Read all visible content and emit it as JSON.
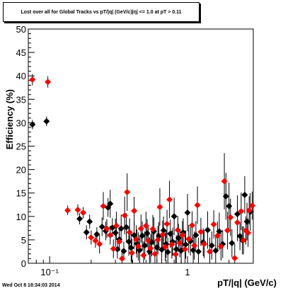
{
  "title": "Lost over all for Global Tracks vs pT/|q| (GeV/c)|η| <= 1.0 at pT > 0.11",
  "timestamp": "Wed Oct  8 18:34:03 2014",
  "colors": {
    "series_black": "#000000",
    "series_red": "#ff0000",
    "axis": "#000000",
    "background": "#ffffff"
  },
  "chart_data": {
    "type": "scatter",
    "title": "Lost over all for Global Tracks vs pT/|q| (GeV/c)|η| <= 1.0 at pT > 0.11",
    "xlabel": "pT/|q| (GeV/c)",
    "ylabel": "Efficiency (%)",
    "xscale": "log",
    "xlim": [
      0.07,
      3.0
    ],
    "ylim": [
      0,
      50
    ],
    "x_tick_labels": [
      {
        "value": 0.1,
        "label": "10⁻¹"
      },
      {
        "value": 1,
        "label": "1"
      }
    ],
    "y_ticks": [
      0,
      5,
      10,
      15,
      20,
      25,
      30,
      35,
      40,
      45,
      50
    ],
    "marker": "diamond",
    "legend": "none",
    "grid": false,
    "series": [
      {
        "color": "#000000",
        "points": [
          {
            "x": 0.075,
            "y": 29.6,
            "err": 1.0
          },
          {
            "x": 0.095,
            "y": 30.3,
            "err": 1.0
          },
          {
            "x": 0.165,
            "y": 9.5,
            "err": 1.2
          },
          {
            "x": 0.185,
            "y": 6.6,
            "err": 1.5
          },
          {
            "x": 0.195,
            "y": 8.9,
            "err": 1.5
          },
          {
            "x": 0.22,
            "y": 6.2,
            "err": 1.5
          },
          {
            "x": 0.24,
            "y": 7.8,
            "err": 2
          },
          {
            "x": 0.255,
            "y": 6.9,
            "err": 2
          },
          {
            "x": 0.265,
            "y": 11.9,
            "err": 2
          },
          {
            "x": 0.275,
            "y": 12.7,
            "err": 3
          },
          {
            "x": 0.285,
            "y": 7.6,
            "err": 2
          },
          {
            "x": 0.3,
            "y": 6.5,
            "err": 3
          },
          {
            "x": 0.31,
            "y": 3.0,
            "err": 2
          },
          {
            "x": 0.32,
            "y": 5.1,
            "err": 2
          },
          {
            "x": 0.33,
            "y": 7.4,
            "err": 3
          },
          {
            "x": 0.345,
            "y": 2.6,
            "err": 2
          },
          {
            "x": 0.36,
            "y": 7.7,
            "err": 3
          },
          {
            "x": 0.375,
            "y": 4.6,
            "err": 3
          },
          {
            "x": 0.39,
            "y": 3.3,
            "err": 3
          },
          {
            "x": 0.41,
            "y": 6.0,
            "err": 3
          },
          {
            "x": 0.43,
            "y": 4.2,
            "err": 3
          },
          {
            "x": 0.45,
            "y": 2.8,
            "err": 3
          },
          {
            "x": 0.47,
            "y": 5.9,
            "err": 3
          },
          {
            "x": 0.49,
            "y": 3.8,
            "err": 3
          },
          {
            "x": 0.51,
            "y": 6.4,
            "err": 3
          },
          {
            "x": 0.53,
            "y": 2.5,
            "err": 3
          },
          {
            "x": 0.55,
            "y": 4.5,
            "err": 3
          },
          {
            "x": 0.57,
            "y": 6.8,
            "err": 3
          },
          {
            "x": 0.6,
            "y": 3.4,
            "err": 3
          },
          {
            "x": 0.62,
            "y": 5.8,
            "err": 3
          },
          {
            "x": 0.65,
            "y": 2.9,
            "err": 3
          },
          {
            "x": 0.67,
            "y": 7.0,
            "err": 3
          },
          {
            "x": 0.7,
            "y": 4.1,
            "err": 3
          },
          {
            "x": 0.72,
            "y": 2.4,
            "err": 3
          },
          {
            "x": 0.75,
            "y": 6.3,
            "err": 3
          },
          {
            "x": 0.78,
            "y": 4.6,
            "err": 3
          },
          {
            "x": 0.8,
            "y": 10.0,
            "err": 4
          },
          {
            "x": 0.83,
            "y": 3.0,
            "err": 3
          },
          {
            "x": 0.86,
            "y": 5.4,
            "err": 3
          },
          {
            "x": 0.9,
            "y": 2.7,
            "err": 3
          },
          {
            "x": 0.93,
            "y": 6.6,
            "err": 3
          },
          {
            "x": 0.97,
            "y": 4.0,
            "err": 3
          },
          {
            "x": 1.0,
            "y": 10.8,
            "err": 4
          },
          {
            "x": 1.05,
            "y": 4.7,
            "err": 3
          },
          {
            "x": 1.1,
            "y": 2.8,
            "err": 3
          },
          {
            "x": 1.15,
            "y": 6.0,
            "err": 3
          },
          {
            "x": 1.2,
            "y": 2.5,
            "err": 3
          },
          {
            "x": 1.3,
            "y": 4.5,
            "err": 3
          },
          {
            "x": 1.4,
            "y": 7.1,
            "err": 4
          },
          {
            "x": 1.5,
            "y": 3.8,
            "err": 3
          },
          {
            "x": 1.6,
            "y": 2.7,
            "err": 3
          },
          {
            "x": 1.7,
            "y": 6.8,
            "err": 4
          },
          {
            "x": 1.8,
            "y": 4.1,
            "err": 3
          },
          {
            "x": 1.9,
            "y": 14.3,
            "err": 5
          },
          {
            "x": 2.0,
            "y": 12.2,
            "err": 5
          },
          {
            "x": 2.1,
            "y": 4.3,
            "err": 3
          },
          {
            "x": 2.3,
            "y": 10.5,
            "err": 4
          },
          {
            "x": 2.5,
            "y": 4.9,
            "err": 3
          },
          {
            "x": 2.7,
            "y": 8.9,
            "err": 4
          },
          {
            "x": 2.85,
            "y": 11.0,
            "err": 4
          },
          {
            "x": 2.6,
            "y": 14.6,
            "err": 4
          },
          {
            "x": 2.4,
            "y": 5.8,
            "err": 3
          }
        ]
      },
      {
        "color": "#ff0000",
        "points": [
          {
            "x": 0.075,
            "y": 39.2,
            "err": 1.2
          },
          {
            "x": 0.097,
            "y": 38.7,
            "err": 1.2
          },
          {
            "x": 0.135,
            "y": 11.3,
            "err": 1.0
          },
          {
            "x": 0.16,
            "y": 11.4,
            "err": 1.2
          },
          {
            "x": 0.175,
            "y": 10.8,
            "err": 1.2
          },
          {
            "x": 0.2,
            "y": 5.5,
            "err": 1.5
          },
          {
            "x": 0.215,
            "y": 4.8,
            "err": 1.5
          },
          {
            "x": 0.23,
            "y": 4.1,
            "err": 2
          },
          {
            "x": 0.245,
            "y": 12.2,
            "err": 3
          },
          {
            "x": 0.26,
            "y": 7.4,
            "err": 2
          },
          {
            "x": 0.275,
            "y": 6.0,
            "err": 2
          },
          {
            "x": 0.29,
            "y": 3.1,
            "err": 2
          },
          {
            "x": 0.305,
            "y": 8.0,
            "err": 3
          },
          {
            "x": 0.32,
            "y": 4.6,
            "err": 2
          },
          {
            "x": 0.335,
            "y": 1.0,
            "err": 2
          },
          {
            "x": 0.35,
            "y": 10.2,
            "err": 4
          },
          {
            "x": 0.365,
            "y": 15.2,
            "err": 4
          },
          {
            "x": 0.38,
            "y": 6.6,
            "err": 3
          },
          {
            "x": 0.395,
            "y": 2.2,
            "err": 3
          },
          {
            "x": 0.41,
            "y": 11.2,
            "err": 3
          },
          {
            "x": 0.425,
            "y": 5.1,
            "err": 3
          },
          {
            "x": 0.44,
            "y": 3.6,
            "err": 3
          },
          {
            "x": 0.46,
            "y": 7.4,
            "err": 3
          },
          {
            "x": 0.48,
            "y": 1.7,
            "err": 3
          },
          {
            "x": 0.5,
            "y": 8.0,
            "err": 3
          },
          {
            "x": 0.52,
            "y": 4.8,
            "err": 3
          },
          {
            "x": 0.54,
            "y": 3.2,
            "err": 3
          },
          {
            "x": 0.56,
            "y": 7.3,
            "err": 3
          },
          {
            "x": 0.58,
            "y": 2.0,
            "err": 3
          },
          {
            "x": 0.61,
            "y": 5.0,
            "err": 3
          },
          {
            "x": 0.63,
            "y": 12.0,
            "err": 4
          },
          {
            "x": 0.66,
            "y": 6.1,
            "err": 3
          },
          {
            "x": 0.69,
            "y": 3.5,
            "err": 3
          },
          {
            "x": 0.71,
            "y": 8.4,
            "err": 3
          },
          {
            "x": 0.74,
            "y": 13.6,
            "err": 4
          },
          {
            "x": 0.77,
            "y": 4.0,
            "err": 3
          },
          {
            "x": 0.82,
            "y": 1.9,
            "err": 3
          },
          {
            "x": 0.85,
            "y": 7.1,
            "err": 3
          },
          {
            "x": 0.88,
            "y": 4.3,
            "err": 3
          },
          {
            "x": 0.92,
            "y": 6.0,
            "err": 3
          },
          {
            "x": 0.96,
            "y": 3.0,
            "err": 3
          },
          {
            "x": 1.02,
            "y": 5.2,
            "err": 3
          },
          {
            "x": 1.08,
            "y": 8.1,
            "err": 3
          },
          {
            "x": 1.12,
            "y": 3.8,
            "err": 3
          },
          {
            "x": 1.18,
            "y": 12.4,
            "err": 4
          },
          {
            "x": 1.25,
            "y": 6.7,
            "err": 3
          },
          {
            "x": 1.32,
            "y": 4.1,
            "err": 3
          },
          {
            "x": 1.45,
            "y": 2.5,
            "err": 3
          },
          {
            "x": 1.55,
            "y": 8.3,
            "err": 3
          },
          {
            "x": 1.65,
            "y": 5.9,
            "err": 3
          },
          {
            "x": 1.75,
            "y": 3.6,
            "err": 3
          },
          {
            "x": 1.85,
            "y": 17.5,
            "err": 6
          },
          {
            "x": 1.95,
            "y": 7.0,
            "err": 4
          },
          {
            "x": 2.05,
            "y": 9.8,
            "err": 4
          },
          {
            "x": 2.2,
            "y": 1.1,
            "err": 3
          },
          {
            "x": 2.3,
            "y": 8.7,
            "err": 4
          },
          {
            "x": 2.45,
            "y": 11.1,
            "err": 4
          },
          {
            "x": 2.55,
            "y": 4.9,
            "err": 3
          },
          {
            "x": 2.65,
            "y": 7.0,
            "err": 3
          },
          {
            "x": 2.75,
            "y": 6.5,
            "err": 3
          },
          {
            "x": 2.8,
            "y": 11.3,
            "err": 3
          },
          {
            "x": 2.95,
            "y": 12.3,
            "err": 3
          }
        ]
      }
    ]
  }
}
